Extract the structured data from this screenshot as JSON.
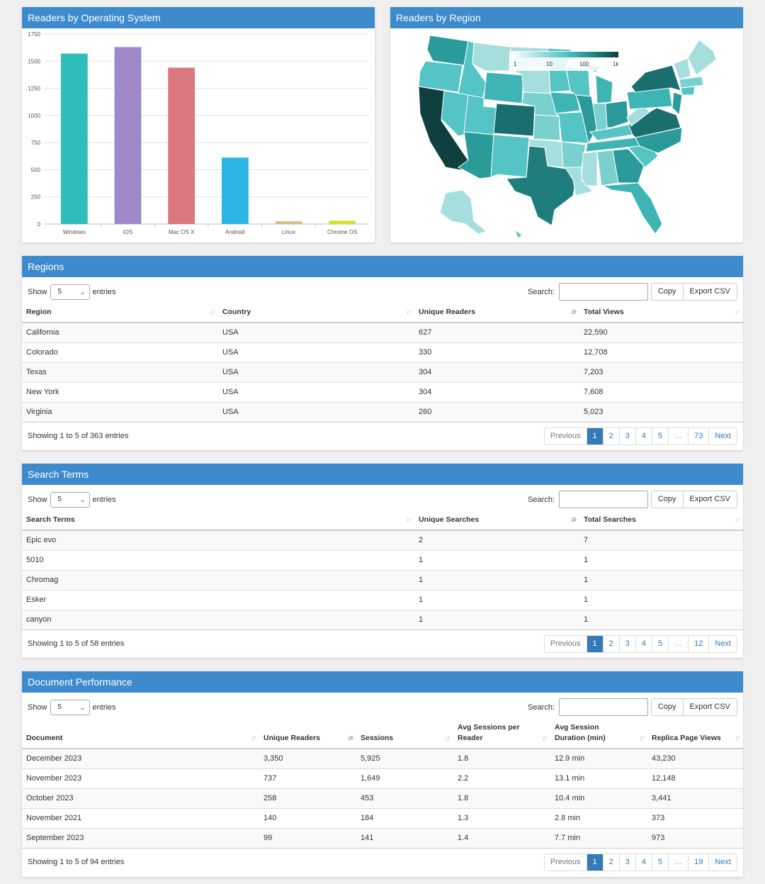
{
  "os_chart": {
    "title": "Readers by Operating System",
    "chart_data": {
      "type": "bar",
      "categories": [
        "Windows",
        "iOS",
        "Mac OS X",
        "Android",
        "Linux",
        "Chrome OS"
      ],
      "values": [
        1570,
        1630,
        1440,
        612,
        25,
        30
      ],
      "colors": [
        "#2ebdbb",
        "#9f88c8",
        "#d9787e",
        "#2cb6e6",
        "#e0b97a",
        "#d6df24"
      ],
      "yticks": [
        0,
        250,
        500,
        750,
        1000,
        1250,
        1500,
        1750
      ],
      "ylim": [
        0,
        1750
      ],
      "grid": true
    }
  },
  "region_map": {
    "title": "Readers by Region",
    "legend_labels": [
      "1",
      "10",
      "100",
      "1k"
    ],
    "colors": [
      "#ffffff",
      "#a6dede",
      "#54c4c4",
      "#2a9a9a",
      "#1b6e6e",
      "#0f3f3f"
    ]
  },
  "regions_table": {
    "title": "Regions",
    "show_label": "Show",
    "entries_label": "entries",
    "page_size": "5",
    "search_label": "Search:",
    "copy_label": "Copy",
    "export_label": "Export CSV",
    "columns": [
      "Region",
      "Country",
      "Unique Readers",
      "Total Views"
    ],
    "rows": [
      [
        "California",
        "USA",
        "627",
        "22,590"
      ],
      [
        "Colorado",
        "USA",
        "330",
        "12,708"
      ],
      [
        "Texas",
        "USA",
        "304",
        "7,203"
      ],
      [
        "New York",
        "USA",
        "304",
        "7,608"
      ],
      [
        "Virginia",
        "USA",
        "260",
        "5,023"
      ]
    ],
    "info": "Showing 1 to 5 of 363 entries",
    "pages": [
      "Previous",
      "1",
      "2",
      "3",
      "4",
      "5",
      "…",
      "73",
      "Next"
    ]
  },
  "search_table": {
    "title": "Search Terms",
    "show_label": "Show",
    "entries_label": "entries",
    "page_size": "5",
    "search_label": "Search:",
    "copy_label": "Copy",
    "export_label": "Export CSV",
    "columns": [
      "Search Terms",
      "Unique Searches",
      "Total Searches"
    ],
    "rows": [
      [
        "Epic evo",
        "2",
        "7"
      ],
      [
        "5010",
        "1",
        "1"
      ],
      [
        "Chromag",
        "1",
        "1"
      ],
      [
        "Esker",
        "1",
        "1"
      ],
      [
        "canyon",
        "1",
        "1"
      ]
    ],
    "info": "Showing 1 to 5 of 58 entries",
    "pages": [
      "Previous",
      "1",
      "2",
      "3",
      "4",
      "5",
      "…",
      "12",
      "Next"
    ]
  },
  "doc_table": {
    "title": "Document Performance",
    "show_label": "Show",
    "entries_label": "entries",
    "page_size": "5",
    "search_label": "Search:",
    "copy_label": "Copy",
    "export_label": "Export CSV",
    "columns": [
      "Document",
      "Unique Readers",
      "Sessions",
      "Avg Sessions per Reader",
      "Avg Session Duration (min)",
      "Replica Page Views"
    ],
    "rows": [
      [
        "December 2023",
        "3,350",
        "5,925",
        "1.8",
        "12.9 min",
        "43,230"
      ],
      [
        "November 2023",
        "737",
        "1,649",
        "2.2",
        "13.1 min",
        "12,148"
      ],
      [
        "October 2023",
        "258",
        "453",
        "1.8",
        "10.4 min",
        "3,441"
      ],
      [
        "November 2021",
        "140",
        "184",
        "1.3",
        "2.8 min",
        "373"
      ],
      [
        "September 2023",
        "99",
        "141",
        "1.4",
        "7.7 min",
        "973"
      ]
    ],
    "info": "Showing 1 to 5 of 94 entries",
    "pages": [
      "Previous",
      "1",
      "2",
      "3",
      "4",
      "5",
      "…",
      "19",
      "Next"
    ]
  }
}
